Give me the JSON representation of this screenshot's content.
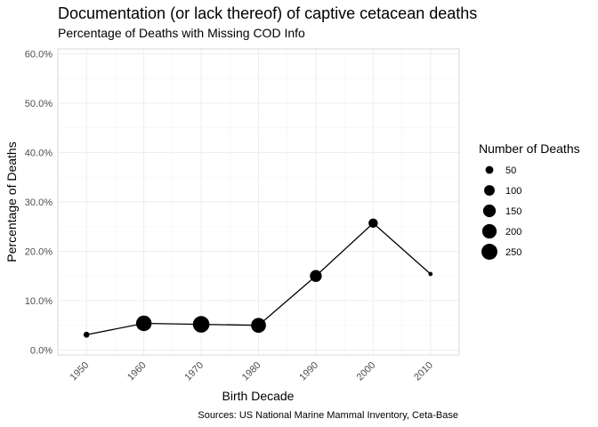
{
  "chart_data": {
    "type": "scatter",
    "title": "Documentation (or lack thereof) of captive cetacean deaths",
    "subtitle": "Percentage of Deaths with Missing COD Info",
    "xlabel": "Birth Decade",
    "ylabel": "Percentage of Deaths",
    "caption": "Sources: US National Marine Mammal Inventory, Ceta-Base",
    "x_ticks": [
      "1950",
      "1960",
      "1970",
      "1980",
      "1990",
      "2000",
      "2010"
    ],
    "y_ticks": [
      "0.0%",
      "10.0%",
      "20.0%",
      "30.0%",
      "40.0%",
      "50.0%",
      "60.0%"
    ],
    "ylim": [
      -0.01,
      0.61
    ],
    "grid": true,
    "connect_points": true,
    "series": [
      {
        "points": [
          {
            "x": 1950,
            "y": 0.031,
            "n": 25
          },
          {
            "x": 1960,
            "y": 0.054,
            "n": 235
          },
          {
            "x": 1970,
            "y": 0.052,
            "n": 270
          },
          {
            "x": 1980,
            "y": 0.05,
            "n": 215
          },
          {
            "x": 1990,
            "y": 0.15,
            "n": 130
          },
          {
            "x": 2000,
            "y": 0.257,
            "n": 75
          },
          {
            "x": 2010,
            "y": 0.154,
            "n": 10
          }
        ]
      }
    ],
    "legend": {
      "title": "Number of Deaths",
      "entries": [
        {
          "label": "50",
          "value": 50
        },
        {
          "label": "100",
          "value": 100
        },
        {
          "label": "150",
          "value": 150
        },
        {
          "label": "200",
          "value": 200
        },
        {
          "label": "250",
          "value": 250
        }
      ]
    }
  }
}
